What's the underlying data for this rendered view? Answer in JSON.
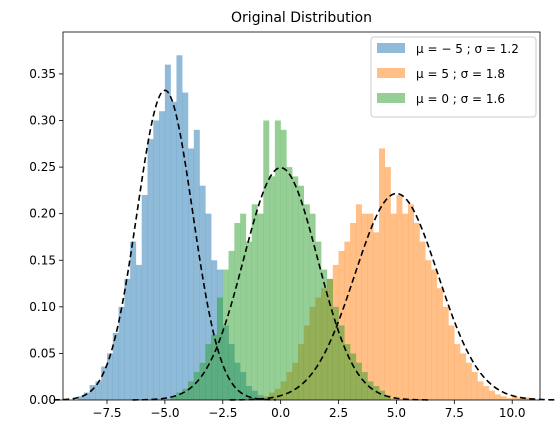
{
  "chart_data": {
    "type": "histogram",
    "title": "Original Distribution",
    "xlabel": "",
    "ylabel": "",
    "xlim": [
      -9.4,
      11.2
    ],
    "ylim": [
      0,
      0.395
    ],
    "xticks": [
      -7.5,
      -5.0,
      -2.5,
      0.0,
      2.5,
      5.0,
      7.5,
      10.0
    ],
    "xtick_labels": [
      "−7.5",
      "−5.0",
      "−2.5",
      "0.0",
      "2.5",
      "5.0",
      "7.5",
      "10.0"
    ],
    "yticks": [
      0.0,
      0.05,
      0.1,
      0.15,
      0.2,
      0.25,
      0.3,
      0.35
    ],
    "ytick_labels": [
      "0.00",
      "0.05",
      "0.10",
      "0.15",
      "0.20",
      "0.25",
      "0.30",
      "0.35"
    ],
    "legend_position": "top-right",
    "bin_width": 0.25,
    "series": [
      {
        "name": "μ = − 5 ;  σ = 1.2",
        "legend_label": "μ = − 5 ;  σ = 1.2",
        "mu": -5,
        "sigma": 1.2,
        "color": "#1f77b4",
        "alpha": 0.5,
        "bin_start": -8.75,
        "values": [
          0.004,
          0.008,
          0.016,
          0.02,
          0.036,
          0.05,
          0.072,
          0.1,
          0.13,
          0.17,
          0.145,
          0.22,
          0.28,
          0.3,
          0.31,
          0.36,
          0.32,
          0.37,
          0.33,
          0.27,
          0.29,
          0.23,
          0.2,
          0.15,
          0.14,
          0.08,
          0.06,
          0.04,
          0.03,
          0.015,
          0.01,
          0.005
        ]
      },
      {
        "name": "μ = 5 ;  σ = 1.8",
        "legend_label": "μ = 5 ;  σ = 1.8",
        "mu": 5,
        "sigma": 1.8,
        "color": "#ff7f0e",
        "alpha": 0.5,
        "bin_start": -0.75,
        "values": [
          0.004,
          0.008,
          0.012,
          0.02,
          0.03,
          0.04,
          0.06,
          0.08,
          0.1,
          0.11,
          0.12,
          0.13,
          0.145,
          0.16,
          0.17,
          0.19,
          0.21,
          0.2,
          0.2,
          0.18,
          0.27,
          0.25,
          0.2,
          0.22,
          0.2,
          0.21,
          0.19,
          0.17,
          0.15,
          0.14,
          0.12,
          0.1,
          0.08,
          0.06,
          0.05,
          0.04,
          0.03,
          0.02,
          0.015,
          0.01,
          0.006,
          0.004,
          0.002,
          0.004,
          0.002,
          0.003
        ]
      },
      {
        "name": "μ = 0 ;  σ = 1.6",
        "legend_label": "μ = 0 ;  σ = 1.6",
        "mu": 0,
        "sigma": 1.6,
        "color": "#2ca02c",
        "alpha": 0.5,
        "bin_start": -4.75,
        "values": [
          0.004,
          0.008,
          0.012,
          0.02,
          0.03,
          0.04,
          0.06,
          0.07,
          0.11,
          0.14,
          0.16,
          0.19,
          0.2,
          0.17,
          0.21,
          0.2,
          0.3,
          0.24,
          0.3,
          0.29,
          0.25,
          0.24,
          0.23,
          0.21,
          0.2,
          0.17,
          0.14,
          0.13,
          0.1,
          0.08,
          0.06,
          0.05,
          0.04,
          0.03,
          0.02,
          0.015,
          0.01,
          0.005
        ]
      }
    ],
    "pdf_curves": {
      "style": "dashed",
      "color": "#000000"
    }
  }
}
